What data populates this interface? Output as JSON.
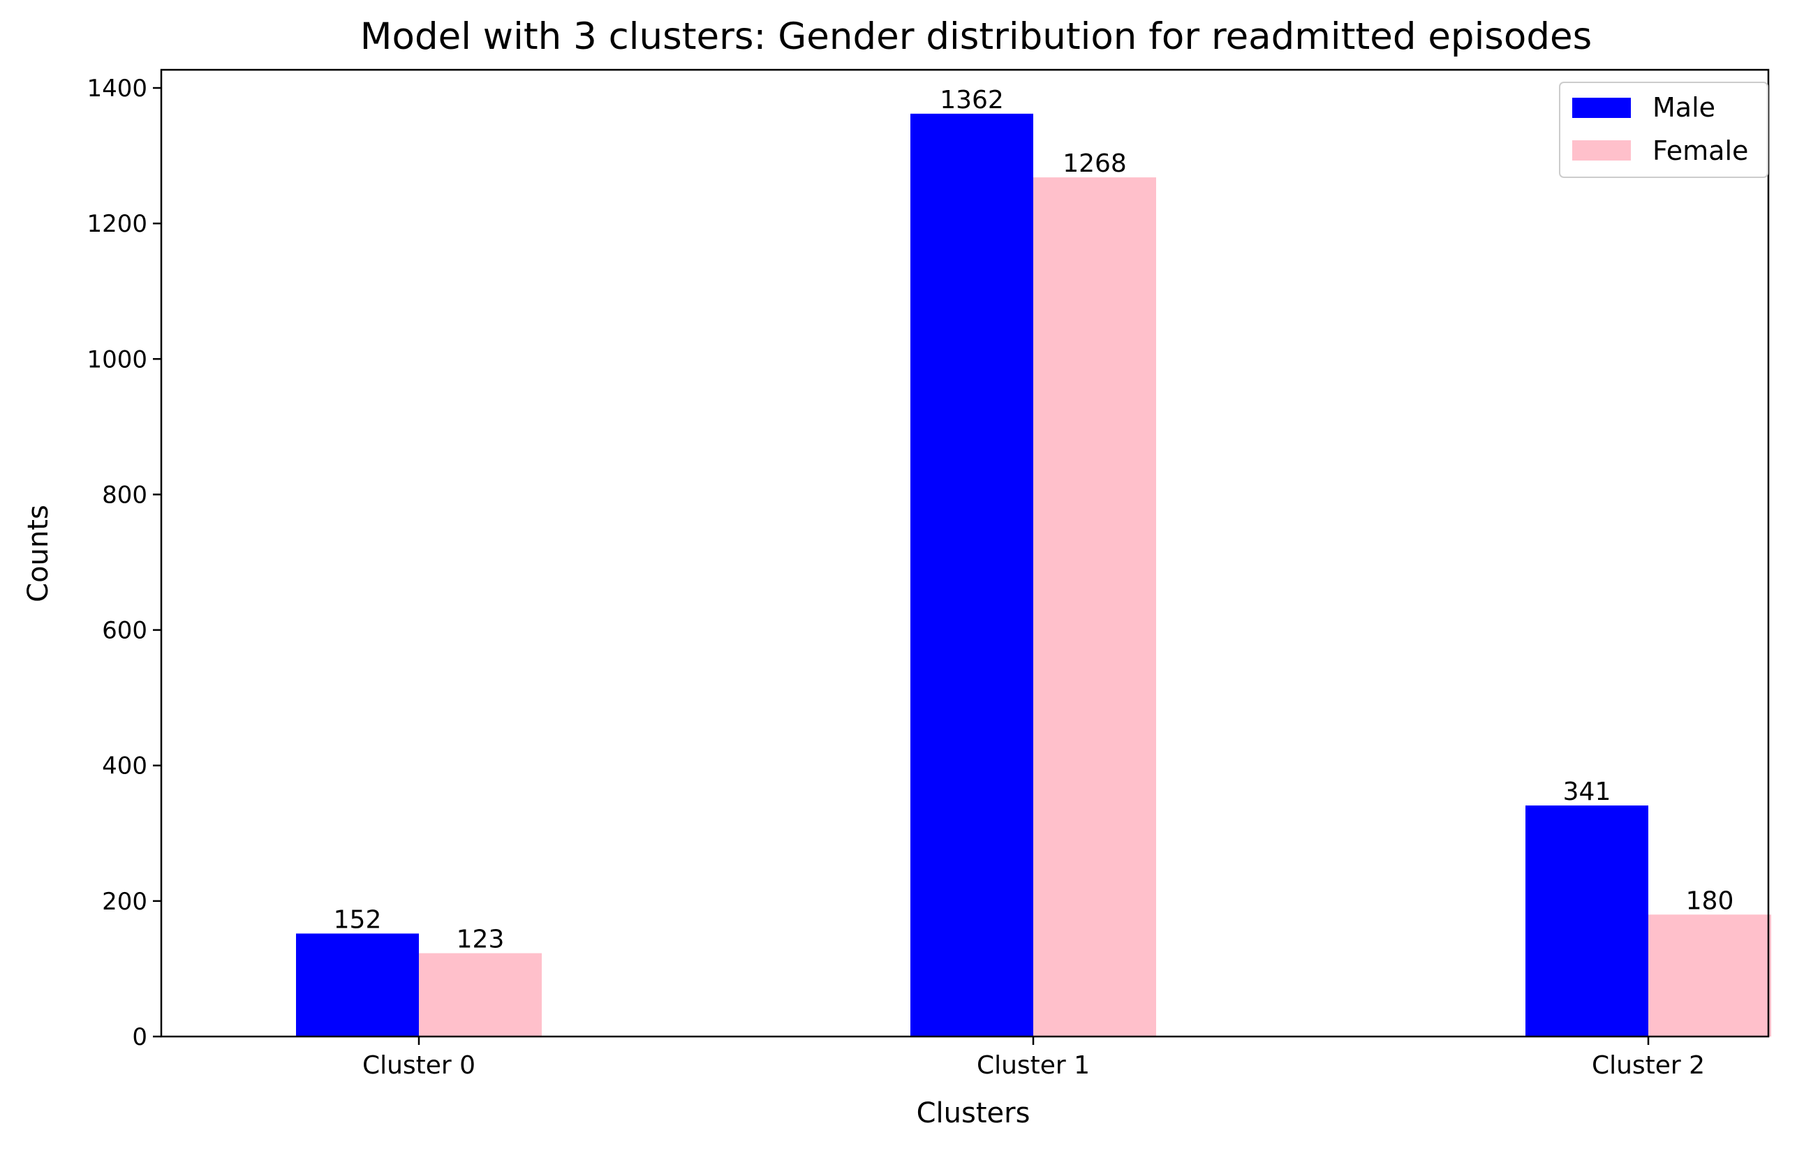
{
  "chart_data": {
    "type": "bar",
    "title": "Model with 3 clusters: Gender distribution for readmitted episodes",
    "xlabel": "Clusters",
    "ylabel": "Counts",
    "categories": [
      "Cluster 0",
      "Cluster 1",
      "Cluster 2"
    ],
    "series": [
      {
        "name": "Male",
        "values": [
          152,
          1362,
          341
        ],
        "color": "#0000ff"
      },
      {
        "name": "Female",
        "values": [
          123,
          1268,
          180
        ],
        "color": "#ffc0cb"
      }
    ],
    "ylim": [
      0,
      1400
    ],
    "yticks": [
      0,
      200,
      400,
      600,
      800,
      1000,
      1200,
      1400
    ],
    "data_labels": true,
    "grid": false,
    "legend": "top-right"
  }
}
